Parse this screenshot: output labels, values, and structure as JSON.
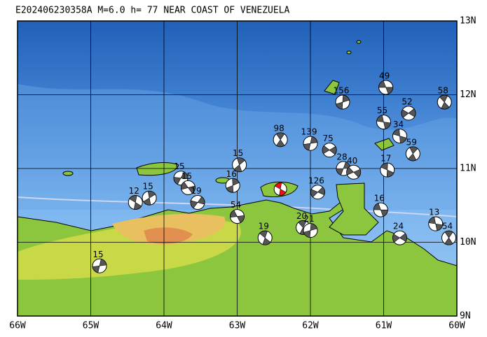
{
  "map": {
    "title": "E202406230358A M=6.0 h= 77 NEAR COAST OF VENEZUELA",
    "xticks": [
      {
        "value": -66,
        "label": "66W"
      },
      {
        "value": -65,
        "label": "65W"
      },
      {
        "value": -64,
        "label": "64W"
      },
      {
        "value": -63,
        "label": "63W"
      },
      {
        "value": -62,
        "label": "62W"
      },
      {
        "value": -61,
        "label": "61W"
      },
      {
        "value": -60,
        "label": "60W"
      }
    ],
    "yticks": [
      {
        "value": 13,
        "label": "13N"
      },
      {
        "value": 12,
        "label": "12N"
      },
      {
        "value": 11,
        "label": "11N"
      },
      {
        "value": 10,
        "label": "10N"
      },
      {
        "value": 9,
        "label": "9N"
      }
    ],
    "xlim": [
      -66,
      -60
    ],
    "ylim": [
      9,
      13
    ],
    "main_event": {
      "lon": -62.41,
      "lat": 10.72,
      "color": "#ee1111"
    },
    "events": [
      {
        "label": "49",
        "lon": -60.97,
        "lat": 12.1
      },
      {
        "label": "58",
        "lon": -60.17,
        "lat": 11.9
      },
      {
        "label": "156",
        "lon": -61.56,
        "lat": 11.9
      },
      {
        "label": "52",
        "lon": -60.66,
        "lat": 11.75
      },
      {
        "label": "55",
        "lon": -61.0,
        "lat": 11.63
      },
      {
        "label": "98",
        "lon": -62.41,
        "lat": 11.39
      },
      {
        "label": "139",
        "lon": -62.0,
        "lat": 11.34
      },
      {
        "label": "75",
        "lon": -61.74,
        "lat": 11.25
      },
      {
        "label": "34",
        "lon": -60.78,
        "lat": 11.44
      },
      {
        "label": "59",
        "lon": -60.6,
        "lat": 11.2
      },
      {
        "label": "28",
        "lon": -61.55,
        "lat": 11.0
      },
      {
        "label": "40",
        "lon": -61.41,
        "lat": 10.95
      },
      {
        "label": "17",
        "lon": -60.95,
        "lat": 10.98
      },
      {
        "label": "15",
        "lon": -62.97,
        "lat": 11.05
      },
      {
        "label": "15",
        "lon": -63.77,
        "lat": 10.87
      },
      {
        "label": "15",
        "lon": -63.67,
        "lat": 10.74
      },
      {
        "label": "12",
        "lon": -64.39,
        "lat": 10.54
      },
      {
        "label": "15",
        "lon": -64.2,
        "lat": 10.6
      },
      {
        "label": "19",
        "lon": -63.54,
        "lat": 10.54
      },
      {
        "label": "54",
        "lon": -63.0,
        "lat": 10.35
      },
      {
        "label": "19",
        "lon": -62.62,
        "lat": 10.06
      },
      {
        "label": "16",
        "lon": -63.06,
        "lat": 10.77
      },
      {
        "label": "126",
        "lon": -61.9,
        "lat": 10.68
      },
      {
        "label": "16",
        "lon": -61.04,
        "lat": 10.44
      },
      {
        "label": "20",
        "lon": -62.1,
        "lat": 10.2
      },
      {
        "label": "21",
        "lon": -62.0,
        "lat": 10.16
      },
      {
        "label": "24",
        "lon": -60.78,
        "lat": 10.06
      },
      {
        "label": "13",
        "lon": -60.29,
        "lat": 10.25
      },
      {
        "label": "54",
        "lon": -60.11,
        "lat": 10.06
      },
      {
        "label": "15",
        "lon": -64.88,
        "lat": 9.68
      }
    ]
  }
}
